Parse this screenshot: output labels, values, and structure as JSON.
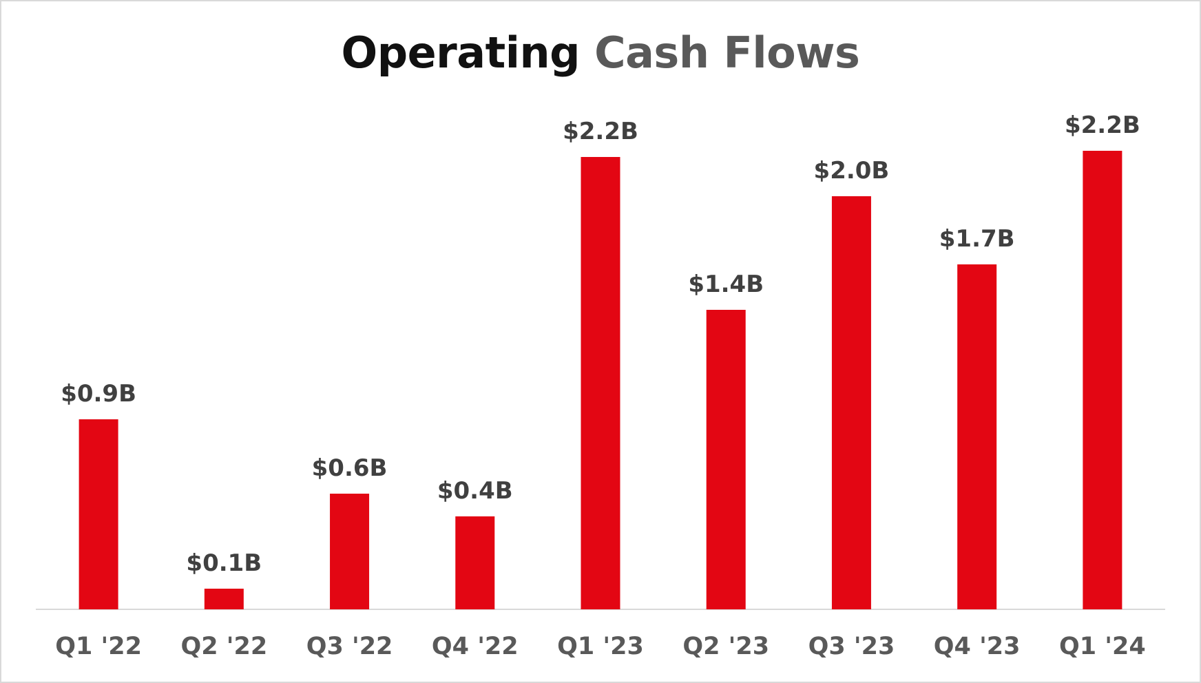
{
  "chart_data": {
    "type": "bar",
    "title_part1": "Operating",
    "title_part2": "Cash Flows",
    "categories": [
      "Q1 '22",
      "Q2 '22",
      "Q3 '22",
      "Q4 '22",
      "Q1 '23",
      "Q2 '23",
      "Q3 '23",
      "Q4 '23",
      "Q1 '24"
    ],
    "values": [
      0.92,
      0.1,
      0.56,
      0.45,
      2.19,
      1.45,
      2.0,
      1.67,
      2.22
    ],
    "data_labels": [
      "$0.9B",
      "$0.1B",
      "$0.6B",
      "$0.4B",
      "$2.2B",
      "$1.4B",
      "$2.0B",
      "$1.7B",
      "$2.2B"
    ],
    "ylim": [
      0,
      2.4
    ],
    "grid": false,
    "legend": "none",
    "bar_color": "#e30613"
  }
}
